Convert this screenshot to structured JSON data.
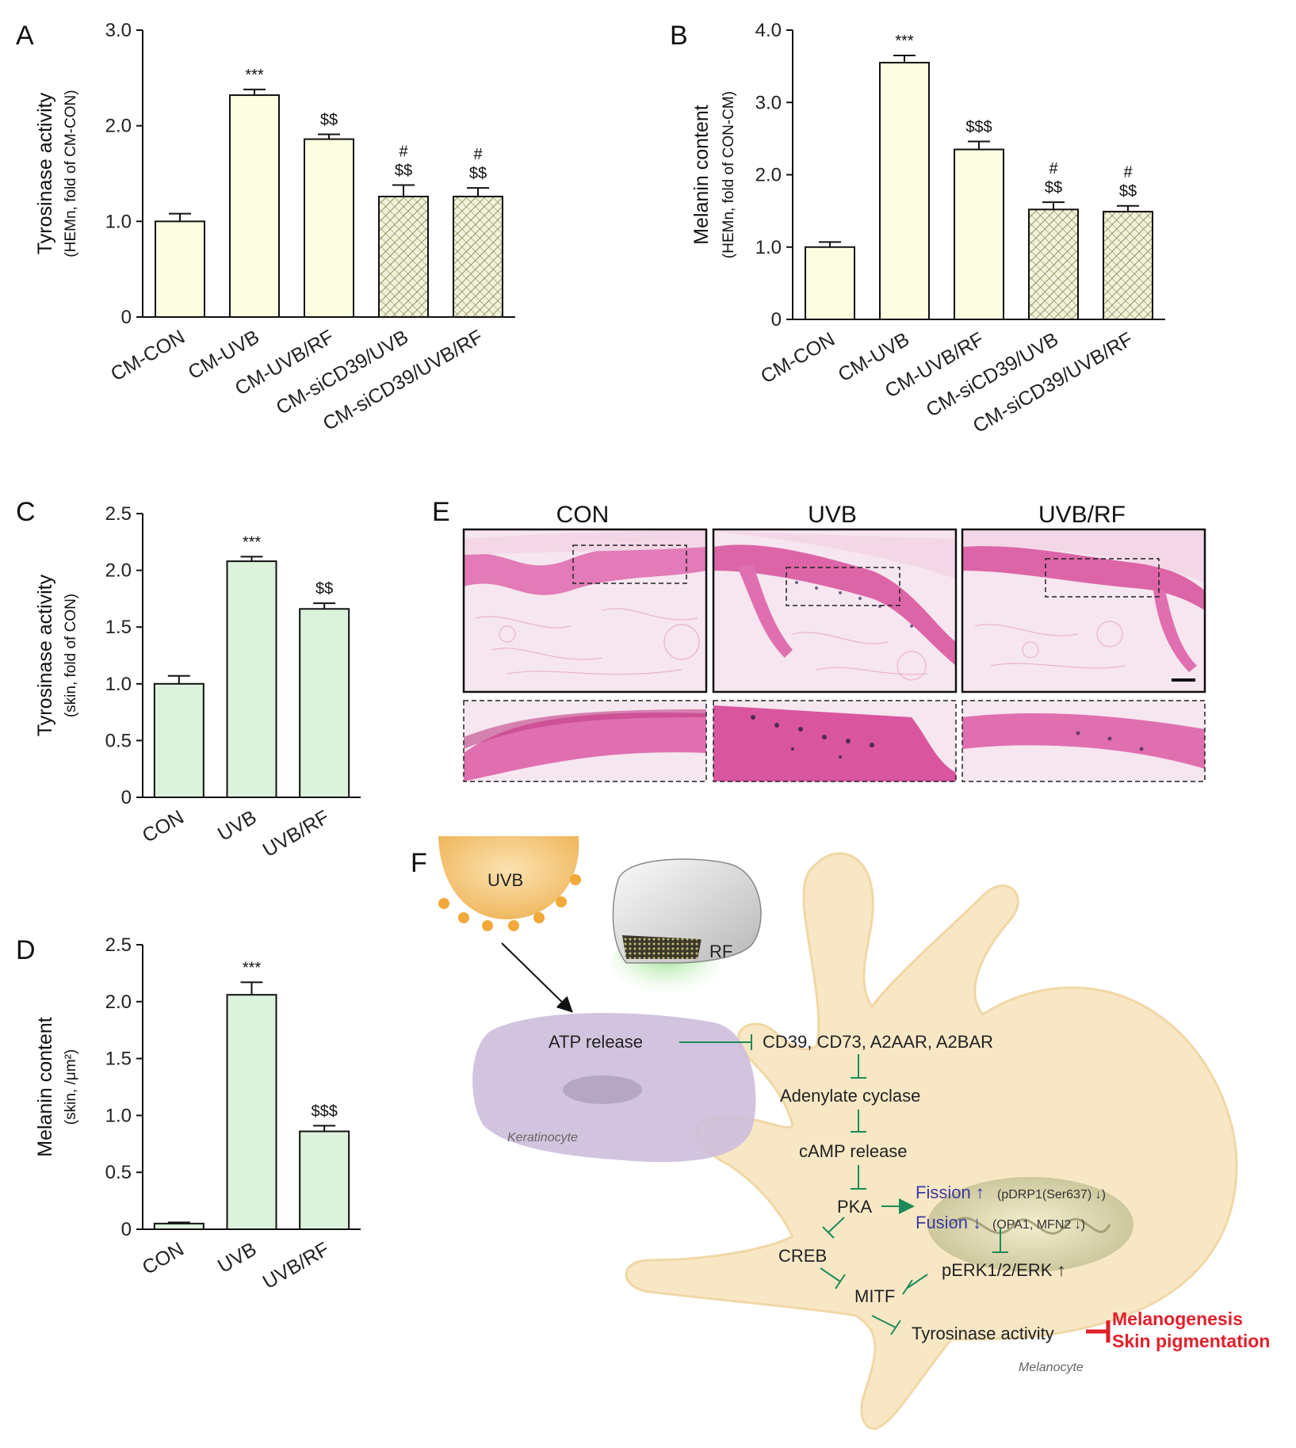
{
  "panels": {
    "A": "A",
    "B": "B",
    "C": "C",
    "D": "D",
    "E": "E",
    "F": "F"
  },
  "chart_data": [
    {
      "id": "A",
      "type": "bar",
      "ylabel": "Tyrosinase activity",
      "ylabel_sub": "(HEMn, fold of CM-CON)",
      "ylim": [
        0,
        3.0
      ],
      "yticks": [
        "0",
        "1.0",
        "2.0",
        "3.0"
      ],
      "ytick_values": [
        0,
        1,
        2,
        3
      ],
      "categories": [
        "CM-CON",
        "CM-UVB",
        "CM-UVB/RF",
        "CM-siCD39/UVB",
        "CM-siCD39/UVB/RF"
      ],
      "values": [
        1.0,
        2.32,
        1.86,
        1.26,
        1.26
      ],
      "errors": [
        0.08,
        0.06,
        0.05,
        0.12,
        0.09
      ],
      "significance": [
        [],
        [
          "***"
        ],
        [
          "$$"
        ],
        [
          "#",
          "$$"
        ],
        [
          "#",
          "$$"
        ]
      ],
      "fill": [
        "plain",
        "plain",
        "plain",
        "hatched",
        "hatched"
      ],
      "color": "#fdfde2"
    },
    {
      "id": "B",
      "type": "bar",
      "ylabel": "Melanin content",
      "ylabel_sub": "(HEMn, fold of CON-CM)",
      "ylim": [
        0,
        4.0
      ],
      "yticks": [
        "0",
        "1.0",
        "2.0",
        "3.0",
        "4.0"
      ],
      "ytick_values": [
        0,
        1,
        2,
        3,
        4
      ],
      "categories": [
        "CM-CON",
        "CM-UVB",
        "CM-UVB/RF",
        "CM-siCD39/UVB",
        "CM-siCD39/UVB/RF"
      ],
      "values": [
        1.0,
        3.55,
        2.35,
        1.52,
        1.49
      ],
      "errors": [
        0.07,
        0.1,
        0.11,
        0.1,
        0.08
      ],
      "significance": [
        [],
        [
          "***"
        ],
        [
          "$$$"
        ],
        [
          "#",
          "$$"
        ],
        [
          "#",
          "$$"
        ]
      ],
      "fill": [
        "plain",
        "plain",
        "plain",
        "hatched",
        "hatched"
      ],
      "color": "#fdfde2"
    },
    {
      "id": "C",
      "type": "bar",
      "ylabel": "Tyrosinase activity",
      "ylabel_sub": "(skin, fold of CON)",
      "ylim": [
        0,
        2.5
      ],
      "yticks": [
        "0",
        "0.5",
        "1.0",
        "1.5",
        "2.0",
        "2.5"
      ],
      "ytick_values": [
        0,
        0.5,
        1,
        1.5,
        2,
        2.5
      ],
      "categories": [
        "CON",
        "UVB",
        "UVB/RF"
      ],
      "values": [
        1.0,
        2.08,
        1.66
      ],
      "errors": [
        0.07,
        0.04,
        0.05
      ],
      "significance": [
        [],
        [
          "***"
        ],
        [
          "$$"
        ]
      ],
      "fill": [
        "plain",
        "plain",
        "plain"
      ],
      "color": "#ddf2dc"
    },
    {
      "id": "D",
      "type": "bar",
      "ylabel": "Melanin content",
      "ylabel_sub": "(skin, /μm²)",
      "ylim": [
        0,
        2.5
      ],
      "yticks": [
        "0",
        "0.5",
        "1.0",
        "1.5",
        "2.0",
        "2.5"
      ],
      "ytick_values": [
        0,
        0.5,
        1,
        1.5,
        2,
        2.5
      ],
      "categories": [
        "CON",
        "UVB",
        "UVB/RF"
      ],
      "values": [
        0.05,
        2.06,
        0.86
      ],
      "errors": [
        0.01,
        0.11,
        0.05
      ],
      "significance": [
        [],
        [
          "***"
        ],
        [
          "$$$"
        ]
      ],
      "fill": [
        "plain",
        "plain",
        "plain"
      ],
      "color": "#ddf2dc"
    }
  ],
  "histology": {
    "titles": [
      "CON",
      "UVB",
      "UVB/RF"
    ]
  },
  "diagram": {
    "uvb": "UVB",
    "rf": "RF",
    "atp": "ATP release",
    "keratinocyte": "Keratinocyte",
    "receptors": "CD39, CD73, A2AAR, A2BAR",
    "adenylate": "Adenylate cyclase",
    "camp": "cAMP release",
    "pka": "PKA",
    "fission": "Fission ↑",
    "fission_detail": "(pDRP1(Ser637) ↓)",
    "fusion": "Fusion ↓",
    "fusion_detail": "(OPA1, MFN2 ↓)",
    "creb": "CREB",
    "perk": "pERK1/2/ERK ↑",
    "mitf": "MITF",
    "tyrosinase": "Tyrosinase activity",
    "melanogenesis": "Melanogenesis",
    "pigmentation": "Skin pigmentation",
    "melanocyte": "Melanocyte"
  }
}
